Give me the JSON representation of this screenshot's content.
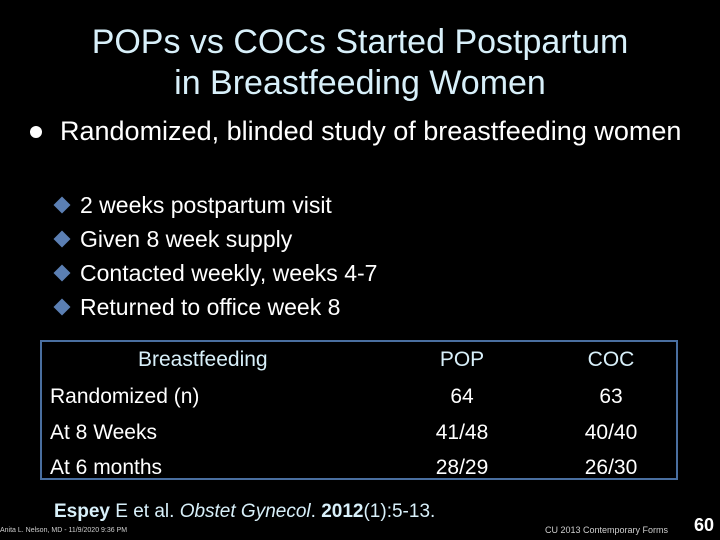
{
  "title": {
    "line1": "POPs vs COCs Started Postpartum",
    "line2": "in Breastfeeding Women"
  },
  "bullet": {
    "text": "Randomized, blinded study of breastfeeding women"
  },
  "sub_bullets": [
    "2 weeks postpartum visit",
    "Given 8 week supply",
    "Contacted weekly, weeks 4-7",
    "Returned to office week 8"
  ],
  "table": {
    "header": {
      "name": "Breastfeeding",
      "pop": "POP",
      "coc": "COC"
    },
    "rows": [
      {
        "label": "Randomized (n)",
        "pop": "64",
        "coc": "63"
      },
      {
        "label": "At 8 Weeks",
        "pop": "41/48",
        "coc": "40/40"
      },
      {
        "label": "At 6 months",
        "pop": "28/29",
        "coc": "26/30"
      }
    ]
  },
  "citation": {
    "authors": "Espey",
    "authors_rest": " E et al. ",
    "journal": "Obstet Gynecol",
    "dot": ". ",
    "year": "2012",
    "pages": "(1):5-13."
  },
  "footer": {
    "left": "Anita L. Nelson, MD - 11/9/2020 9:36 PM",
    "right": "CU 2013 Contemporary Forms",
    "page": "60"
  },
  "colors": {
    "title": "#d8f0fa",
    "bullet_diamond": "#5b7fb3",
    "table_border": "#4a6fa0"
  }
}
